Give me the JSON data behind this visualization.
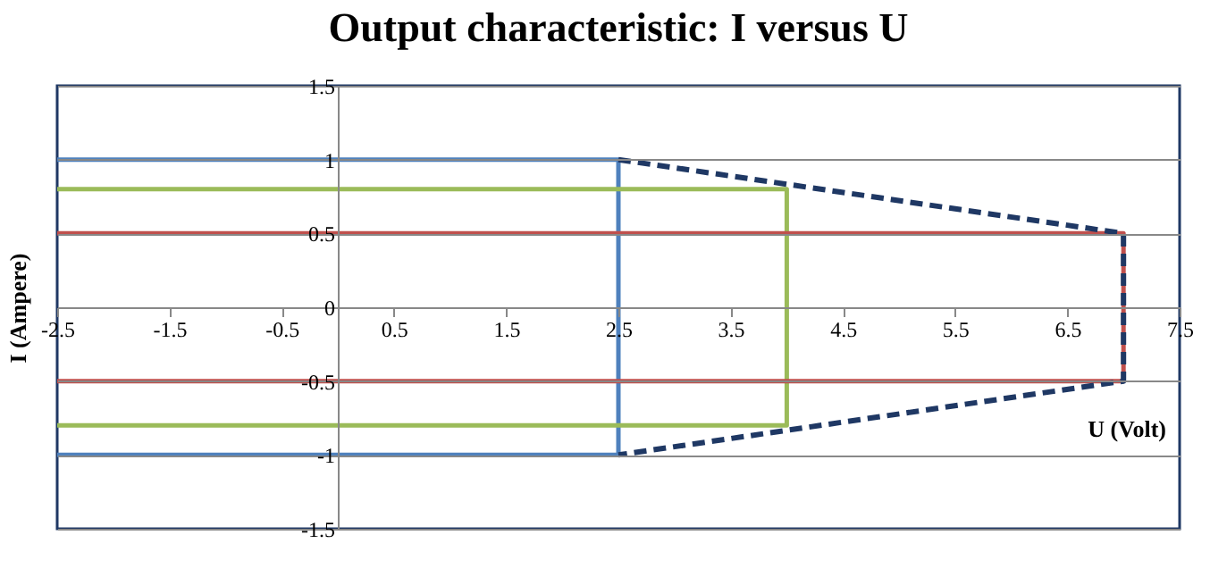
{
  "chart_data": {
    "type": "line",
    "title": "Output characteristic: I versus U",
    "xlabel": "U (Volt)",
    "ylabel": "I (Ampere)",
    "xlim": [
      -2.5,
      7.5
    ],
    "xticks": [
      -2.5,
      -1.5,
      -0.5,
      0.5,
      1.5,
      2.5,
      3.5,
      4.5,
      5.5,
      6.5,
      7.5
    ],
    "ylim": [
      -1.5,
      1.5
    ],
    "yticks": [
      -1.5,
      -1,
      -0.5,
      0,
      0.5,
      1,
      1.5
    ],
    "grid": "y",
    "marker": "none",
    "series": [
      {
        "color": "#4f81bd",
        "x": [
          -2.5,
          2.5,
          2.5,
          -2.5
        ],
        "values": [
          1,
          1,
          -1,
          -1
        ],
        "line_style": "solid"
      },
      {
        "color": "#9bbb59",
        "x": [
          -2.5,
          4,
          4,
          -2.5
        ],
        "values": [
          0.8,
          0.8,
          -0.8,
          -0.8
        ],
        "line_style": "solid"
      },
      {
        "color": "#c0504d",
        "x": [
          -2.5,
          7,
          7,
          -2.5
        ],
        "values": [
          0.5,
          0.5,
          -0.5,
          -0.5
        ],
        "line_style": "solid"
      },
      {
        "color": "#1f3864",
        "x": [
          2.5,
          7,
          7,
          2.5
        ],
        "values": [
          1,
          0.5,
          -0.5,
          -1
        ],
        "line_style": "dashed"
      }
    ]
  }
}
